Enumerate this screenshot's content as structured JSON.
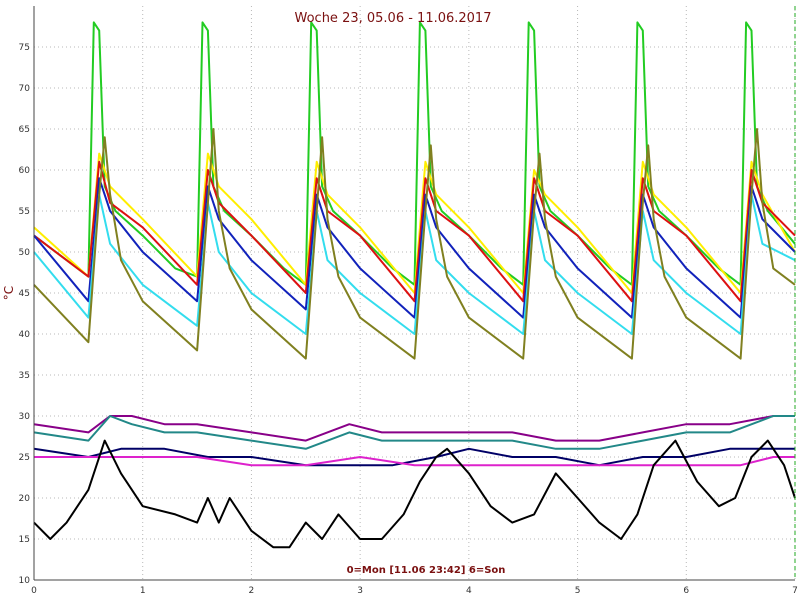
{
  "chart_data": {
    "type": "line",
    "title": "Woche 23, 05.06 - 11.06.2017",
    "footer": "0=Mon [11.06 23:42] 6=Son",
    "ylabel": "°C",
    "xlabel": "",
    "xlim": [
      0,
      7
    ],
    "ylim": [
      10,
      80
    ],
    "x_ticks": [
      "0",
      "1",
      "2",
      "3",
      "4",
      "5",
      "6",
      "7"
    ],
    "y_ticks": [
      "10",
      "15",
      "20",
      "25",
      "30",
      "35",
      "40",
      "45",
      "50",
      "55",
      "60",
      "65",
      "70",
      "75"
    ],
    "grid": true,
    "legend": "none",
    "series": [
      {
        "color": "#22cc22",
        "x": [
          0,
          0.5,
          0.55,
          0.6,
          0.65,
          0.75,
          1.0,
          1.3,
          1.5,
          1.55,
          1.6,
          1.65,
          1.75,
          2.0,
          2.3,
          2.5,
          2.55,
          2.6,
          2.65,
          2.75,
          3.0,
          3.3,
          3.5,
          3.55,
          3.6,
          3.65,
          3.75,
          4.0,
          4.3,
          4.5,
          4.55,
          4.6,
          4.65,
          4.75,
          5.0,
          5.3,
          5.5,
          5.55,
          5.6,
          5.65,
          5.75,
          6.0,
          6.3,
          6.5,
          6.55,
          6.6,
          6.65,
          6.75,
          7.0
        ],
        "y": [
          52,
          47,
          78,
          77,
          58,
          55,
          52,
          48,
          47,
          78,
          77,
          58,
          55,
          52,
          48,
          46,
          78,
          77,
          58,
          55,
          52,
          48,
          46,
          78,
          77,
          58,
          55,
          52,
          48,
          46,
          78,
          77,
          58,
          55,
          52,
          48,
          46,
          78,
          77,
          58,
          55,
          52,
          48,
          46,
          78,
          77,
          58,
          55,
          51
        ]
      },
      {
        "color": "#ffee00",
        "x": [
          0,
          0.5,
          0.6,
          0.7,
          1.0,
          1.5,
          1.6,
          1.7,
          2.0,
          2.5,
          2.6,
          2.7,
          3.0,
          3.5,
          3.6,
          3.7,
          4.0,
          4.5,
          4.6,
          4.7,
          5.0,
          5.5,
          5.6,
          5.7,
          6.0,
          6.5,
          6.6,
          6.7,
          7.0
        ],
        "y": [
          53,
          47,
          62,
          58,
          54,
          47,
          62,
          58,
          54,
          46,
          61,
          57,
          53,
          45,
          61,
          57,
          53,
          45,
          60,
          57,
          53,
          45,
          61,
          57,
          53,
          45,
          61,
          57,
          50
        ]
      },
      {
        "color": "#dd1111",
        "x": [
          0,
          0.5,
          0.6,
          0.7,
          1.0,
          1.5,
          1.6,
          1.7,
          2.0,
          2.5,
          2.6,
          2.7,
          3.0,
          3.5,
          3.6,
          3.7,
          4.0,
          4.5,
          4.6,
          4.7,
          5.0,
          5.5,
          5.6,
          5.7,
          6.0,
          6.5,
          6.6,
          6.7,
          7.0
        ],
        "y": [
          52,
          47,
          61,
          56,
          53,
          46,
          60,
          56,
          52,
          45,
          59,
          55,
          52,
          44,
          59,
          55,
          52,
          44,
          59,
          55,
          52,
          44,
          59,
          55,
          52,
          44,
          60,
          56,
          52
        ]
      },
      {
        "color": "#1122bb",
        "x": [
          0,
          0.5,
          0.6,
          0.7,
          1.0,
          1.5,
          1.6,
          1.7,
          2.0,
          2.5,
          2.6,
          2.7,
          3.0,
          3.5,
          3.6,
          3.7,
          4.0,
          4.5,
          4.6,
          4.7,
          5.0,
          5.5,
          5.6,
          5.7,
          6.0,
          6.5,
          6.6,
          6.7,
          7.0
        ],
        "y": [
          52,
          44,
          59,
          55,
          50,
          44,
          58,
          54,
          49,
          43,
          57,
          53,
          48,
          42,
          57,
          53,
          48,
          42,
          57,
          53,
          48,
          42,
          57,
          53,
          48,
          42,
          58,
          54,
          50
        ]
      },
      {
        "color": "#33ddee",
        "x": [
          0,
          0.5,
          0.6,
          0.7,
          1.0,
          1.5,
          1.6,
          1.7,
          2.0,
          2.5,
          2.6,
          2.7,
          3.0,
          3.5,
          3.6,
          3.7,
          4.0,
          4.5,
          4.6,
          4.7,
          5.0,
          5.5,
          5.6,
          5.7,
          6.0,
          6.5,
          6.6,
          6.7,
          7.0
        ],
        "y": [
          50,
          42,
          57,
          51,
          46,
          41,
          56,
          50,
          45,
          40,
          55,
          49,
          45,
          40,
          55,
          49,
          45,
          40,
          55,
          49,
          45,
          40,
          55,
          49,
          45,
          40,
          57,
          51,
          49
        ]
      },
      {
        "color": "#808020",
        "x": [
          0,
          0.5,
          0.6,
          0.65,
          0.7,
          0.8,
          1.0,
          1.5,
          1.6,
          1.65,
          1.7,
          1.8,
          2.0,
          2.5,
          2.6,
          2.65,
          2.7,
          2.8,
          3.0,
          3.5,
          3.6,
          3.65,
          3.7,
          3.8,
          4.0,
          4.5,
          4.6,
          4.65,
          4.7,
          4.8,
          5.0,
          5.5,
          5.6,
          5.65,
          5.7,
          5.8,
          6.0,
          6.5,
          6.6,
          6.65,
          6.7,
          6.8,
          7.0
        ],
        "y": [
          46,
          39,
          57,
          64,
          57,
          49,
          44,
          38,
          56,
          65,
          55,
          48,
          43,
          37,
          55,
          64,
          54,
          47,
          42,
          37,
          55,
          63,
          54,
          47,
          42,
          37,
          55,
          62,
          54,
          47,
          42,
          37,
          56,
          63,
          54,
          47,
          42,
          37,
          57,
          65,
          56,
          48,
          46
        ]
      },
      {
        "color": "#880088",
        "x": [
          0,
          0.5,
          0.7,
          0.9,
          1.2,
          1.5,
          2.0,
          2.5,
          2.9,
          3.2,
          3.6,
          4.0,
          4.4,
          4.8,
          5.2,
          5.6,
          6.0,
          6.4,
          6.8,
          7.0
        ],
        "y": [
          29,
          28,
          30,
          30,
          29,
          29,
          28,
          27,
          29,
          28,
          28,
          28,
          28,
          27,
          27,
          28,
          29,
          29,
          30,
          30
        ]
      },
      {
        "color": "#228888",
        "x": [
          0,
          0.5,
          0.7,
          0.9,
          1.2,
          1.5,
          2.0,
          2.5,
          2.9,
          3.2,
          3.6,
          4.0,
          4.4,
          4.8,
          5.2,
          5.6,
          6.0,
          6.4,
          6.8,
          7.0
        ],
        "y": [
          28,
          27,
          30,
          29,
          28,
          28,
          27,
          26,
          28,
          27,
          27,
          27,
          27,
          26,
          26,
          27,
          28,
          28,
          30,
          30
        ]
      },
      {
        "color": "#000066",
        "x": [
          0,
          0.5,
          0.8,
          1.2,
          1.6,
          2.0,
          2.5,
          2.9,
          3.3,
          3.7,
          4.0,
          4.4,
          4.8,
          5.2,
          5.6,
          6.0,
          6.4,
          6.8,
          7.0
        ],
        "y": [
          26,
          25,
          26,
          26,
          25,
          25,
          24,
          24,
          24,
          25,
          26,
          25,
          25,
          24,
          25,
          25,
          26,
          26,
          26
        ]
      },
      {
        "color": "#dd22cc",
        "x": [
          0,
          0.5,
          0.8,
          1.0,
          1.5,
          2.0,
          2.5,
          3.0,
          3.5,
          4.0,
          4.5,
          5.0,
          5.5,
          6.0,
          6.5,
          6.8,
          7.0
        ],
        "y": [
          25,
          25,
          25,
          25,
          25,
          24,
          24,
          25,
          24,
          24,
          24,
          24,
          24,
          24,
          24,
          25,
          25
        ]
      },
      {
        "color": "#000000",
        "x": [
          0,
          0.15,
          0.3,
          0.5,
          0.65,
          0.8,
          1.0,
          1.3,
          1.5,
          1.6,
          1.7,
          1.8,
          2.0,
          2.2,
          2.35,
          2.5,
          2.65,
          2.8,
          3.0,
          3.2,
          3.4,
          3.55,
          3.7,
          3.8,
          4.0,
          4.2,
          4.4,
          4.6,
          4.8,
          5.0,
          5.2,
          5.4,
          5.55,
          5.7,
          5.9,
          6.1,
          6.3,
          6.45,
          6.6,
          6.75,
          6.9,
          7.0
        ],
        "y": [
          17,
          15,
          17,
          21,
          27,
          23,
          19,
          18,
          17,
          20,
          17,
          20,
          16,
          14,
          14,
          17,
          15,
          18,
          15,
          15,
          18,
          22,
          25,
          26,
          23,
          19,
          17,
          18,
          23,
          20,
          17,
          15,
          18,
          24,
          27,
          22,
          19,
          20,
          25,
          27,
          24,
          20
        ]
      }
    ]
  }
}
